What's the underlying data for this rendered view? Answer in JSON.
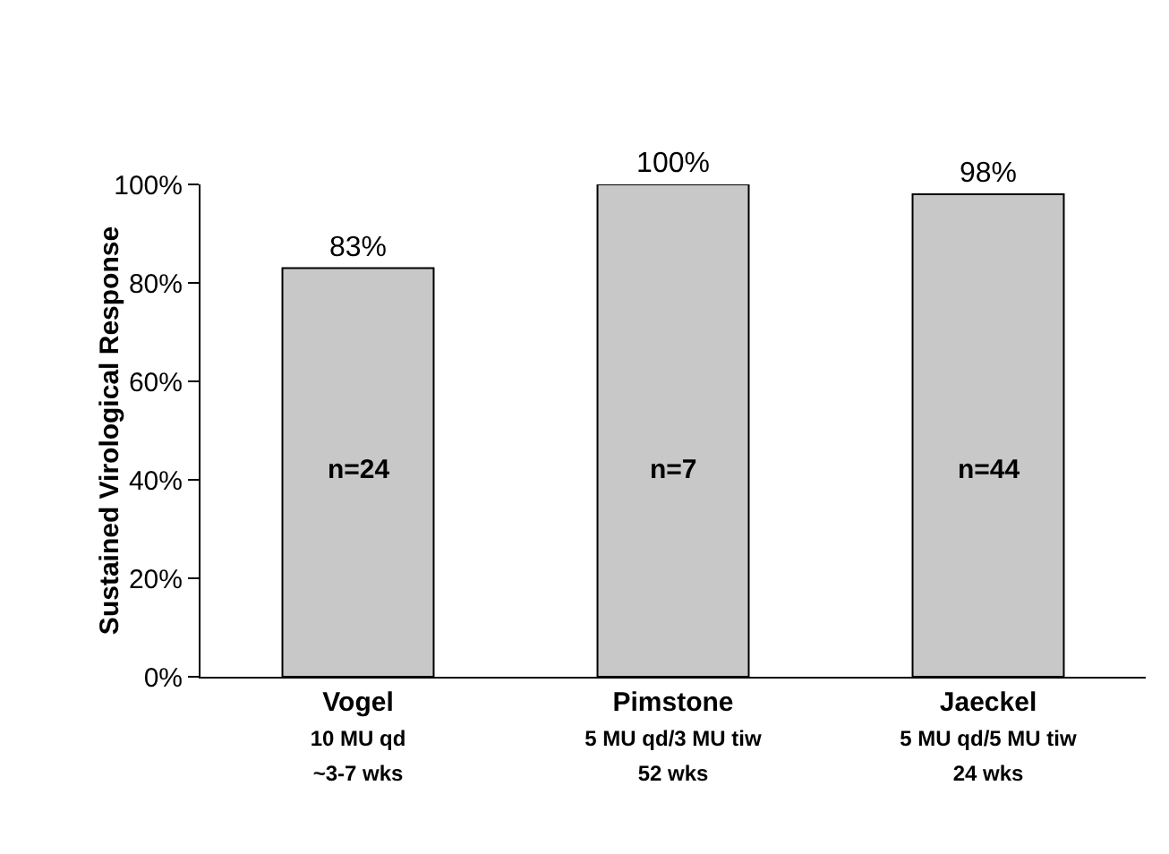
{
  "chart_data": {
    "type": "bar",
    "ylabel": "Sustained Virological Response",
    "categories": [
      "Vogel\n10 MU qd\n~3-7 wks",
      "Pimstone\n5 MU qd/3 MU tiw\n52 wks",
      "Jaeckel\n5 MU qd/5 MU tiw\n24 wks"
    ],
    "values": [
      83,
      100,
      98
    ],
    "color": "#c8c8c8",
    "value_labels": [
      "83%",
      "100%",
      "98%"
    ],
    "ylim": [
      0,
      100
    ],
    "yticks": [
      {
        "value": 0,
        "label": "0%"
      },
      {
        "value": 20,
        "label": "20%"
      },
      {
        "value": 40,
        "label": "40%"
      },
      {
        "value": 60,
        "label": "60%"
      },
      {
        "value": 80,
        "label": "80%"
      },
      {
        "value": 100,
        "label": "100%"
      }
    ],
    "grid": false,
    "annotations": [
      "n=24",
      "n=7",
      "n=44"
    ]
  }
}
